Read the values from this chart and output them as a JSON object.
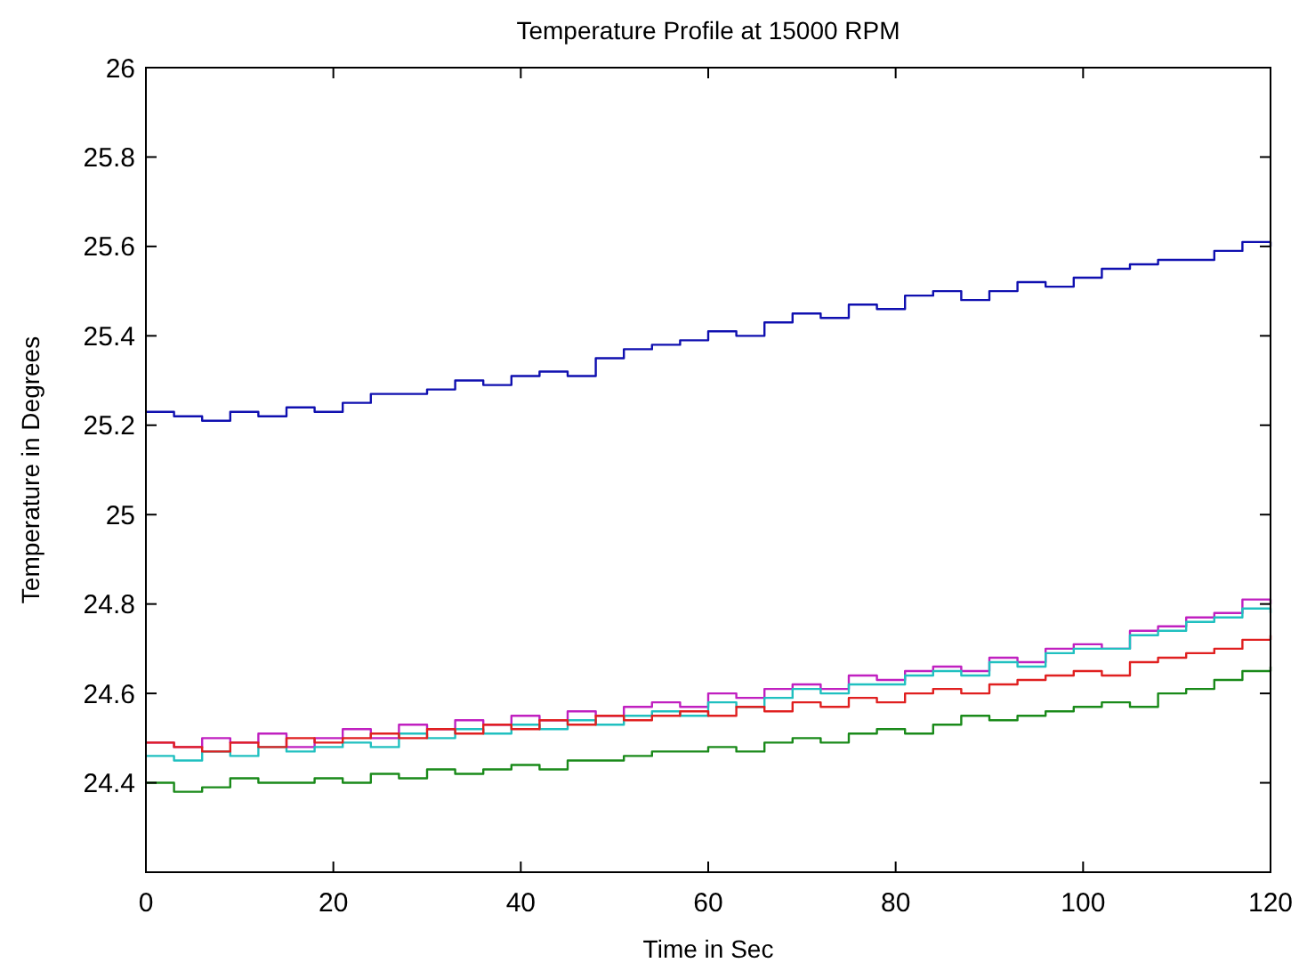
{
  "chart_data": {
    "type": "step",
    "title": "Temperature Profile at 15000 RPM",
    "xlabel": "Time in Sec",
    "ylabel": "Temperature in Degrees",
    "x": [
      0,
      3,
      6,
      9,
      12,
      15,
      18,
      21,
      24,
      27,
      30,
      33,
      36,
      39,
      42,
      45,
      48,
      51,
      54,
      57,
      60,
      63,
      66,
      69,
      72,
      75,
      78,
      81,
      84,
      87,
      90,
      93,
      96,
      99,
      102,
      105,
      108,
      111,
      114,
      117,
      120
    ],
    "series": [
      {
        "color": "#1010b0",
        "values": [
          25.23,
          25.22,
          25.21,
          25.23,
          25.22,
          25.24,
          25.23,
          25.25,
          25.27,
          25.27,
          25.28,
          25.3,
          25.29,
          25.31,
          25.32,
          25.31,
          25.35,
          25.37,
          25.38,
          25.39,
          25.41,
          25.4,
          25.43,
          25.45,
          25.44,
          25.47,
          25.46,
          25.49,
          25.5,
          25.48,
          25.5,
          25.52,
          25.51,
          25.53,
          25.55,
          25.56,
          25.57,
          25.57,
          25.59,
          25.61,
          25.6
        ]
      },
      {
        "color": "#c020c0",
        "values": [
          24.49,
          24.48,
          24.5,
          24.49,
          24.51,
          24.48,
          24.5,
          24.52,
          24.5,
          24.53,
          24.52,
          24.54,
          24.53,
          24.55,
          24.54,
          24.56,
          24.55,
          24.57,
          24.58,
          24.57,
          24.6,
          24.59,
          24.61,
          24.62,
          24.61,
          24.64,
          24.63,
          24.65,
          24.66,
          24.65,
          24.68,
          24.67,
          24.7,
          24.71,
          24.7,
          24.74,
          24.75,
          24.77,
          24.78,
          24.81,
          24.8
        ]
      },
      {
        "color": "#20c0c0",
        "values": [
          24.46,
          24.45,
          24.47,
          24.46,
          24.48,
          24.47,
          24.48,
          24.49,
          24.48,
          24.51,
          24.5,
          24.52,
          24.51,
          24.53,
          24.52,
          24.54,
          24.53,
          24.55,
          24.56,
          24.55,
          24.58,
          24.57,
          24.59,
          24.61,
          24.6,
          24.62,
          24.62,
          24.64,
          24.65,
          24.64,
          24.67,
          24.66,
          24.69,
          24.7,
          24.7,
          24.73,
          24.74,
          24.76,
          24.77,
          24.79,
          24.78
        ]
      },
      {
        "color": "#e02020",
        "values": [
          24.49,
          24.48,
          24.47,
          24.49,
          24.48,
          24.5,
          24.49,
          24.5,
          24.51,
          24.5,
          24.52,
          24.51,
          24.53,
          24.52,
          24.54,
          24.53,
          24.55,
          24.54,
          24.55,
          24.56,
          24.55,
          24.57,
          24.56,
          24.58,
          24.57,
          24.59,
          24.58,
          24.6,
          24.61,
          24.6,
          24.62,
          24.63,
          24.64,
          24.65,
          24.64,
          24.67,
          24.68,
          24.69,
          24.7,
          24.72,
          24.73
        ]
      },
      {
        "color": "#1a8a1a",
        "values": [
          24.4,
          24.38,
          24.39,
          24.41,
          24.4,
          24.4,
          24.41,
          24.4,
          24.42,
          24.41,
          24.43,
          24.42,
          24.43,
          24.44,
          24.43,
          24.45,
          24.45,
          24.46,
          24.47,
          24.47,
          24.48,
          24.47,
          24.49,
          24.5,
          24.49,
          24.51,
          24.52,
          24.51,
          24.53,
          24.55,
          24.54,
          24.55,
          24.56,
          24.57,
          24.58,
          24.57,
          24.6,
          24.61,
          24.63,
          24.65,
          24.66
        ]
      }
    ],
    "xlim": [
      0,
      120
    ],
    "xticks": [
      0,
      20,
      40,
      60,
      80,
      100,
      120
    ],
    "ylim": [
      24.2,
      26
    ],
    "yticks": [
      24.4,
      24.6,
      24.8,
      25,
      25.2,
      25.4,
      25.6,
      25.8,
      26
    ],
    "grid": false
  }
}
